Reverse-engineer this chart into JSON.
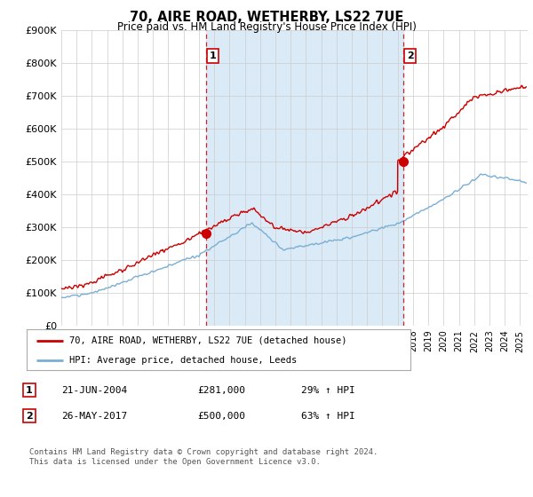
{
  "title": "70, AIRE ROAD, WETHERBY, LS22 7UE",
  "subtitle": "Price paid vs. HM Land Registry's House Price Index (HPI)",
  "ylim": [
    0,
    900000
  ],
  "xlim_start": 1995.0,
  "xlim_end": 2025.5,
  "sale1_x": 2004.47,
  "sale1_y": 281000,
  "sale1_label": "1",
  "sale1_date": "21-JUN-2004",
  "sale1_price": "£281,000",
  "sale1_hpi": "29% ↑ HPI",
  "sale2_x": 2017.38,
  "sale2_y": 500000,
  "sale2_label": "2",
  "sale2_date": "26-MAY-2017",
  "sale2_price": "£500,000",
  "sale2_hpi": "63% ↑ HPI",
  "property_line_color": "#cc0000",
  "hpi_line_color": "#7aafd4",
  "hpi_fill_color": "#daeaf7",
  "between_fill_color": "#daeaf7",
  "sale_marker_color": "#cc0000",
  "vline_color": "#cc0000",
  "legend_property_label": "70, AIRE ROAD, WETHERBY, LS22 7UE (detached house)",
  "legend_hpi_label": "HPI: Average price, detached house, Leeds",
  "footer": "Contains HM Land Registry data © Crown copyright and database right 2024.\nThis data is licensed under the Open Government Licence v3.0.",
  "background_color": "#ffffff",
  "plot_bg_color": "#ffffff",
  "grid_color": "#cccccc",
  "ytick_labels": [
    "£0",
    "£100K",
    "£200K",
    "£300K",
    "£400K",
    "£500K",
    "£600K",
    "£700K",
    "£800K",
    "£900K"
  ]
}
